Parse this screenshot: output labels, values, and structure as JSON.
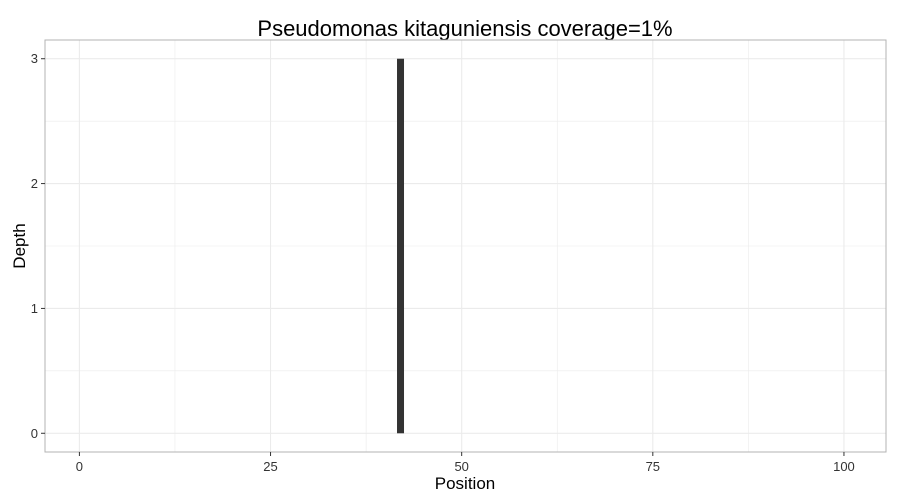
{
  "chart_data": {
    "type": "bar",
    "title": "Pseudomonas kitaguniensis coverage=1%",
    "xlabel": "Position",
    "ylabel": "Depth",
    "xlim": [
      -4.5,
      105.5
    ],
    "ylim": [
      -0.15,
      3.15
    ],
    "x_ticks": [
      0,
      25,
      50,
      75,
      100
    ],
    "x_tick_labels": [
      "0",
      "25",
      "50",
      "75",
      "100"
    ],
    "y_ticks": [
      0,
      1,
      2,
      3
    ],
    "y_tick_labels": [
      "0",
      "1",
      "2",
      "3"
    ],
    "grid": true,
    "legend": "none",
    "bar_color": "#333333",
    "grid_color": "#ebebeb",
    "panel_border_color": "#b3b3b3",
    "points": [
      {
        "x": 42,
        "y": 3
      }
    ]
  }
}
